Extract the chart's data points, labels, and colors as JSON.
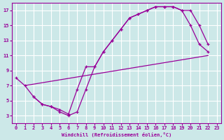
{
  "xlabel": "Windchill (Refroidissement éolien,°C)",
  "bg_color": "#cce8e8",
  "grid_color": "#ffffff",
  "line_color": "#990099",
  "xlim": [
    -0.5,
    23.5
  ],
  "ylim": [
    2,
    18
  ],
  "yticks": [
    3,
    5,
    7,
    9,
    11,
    13,
    15,
    17
  ],
  "xticks": [
    0,
    1,
    2,
    3,
    4,
    5,
    6,
    7,
    8,
    9,
    10,
    11,
    12,
    13,
    14,
    15,
    16,
    17,
    18,
    19,
    20,
    21,
    22,
    23
  ],
  "curve1_x": [
    0,
    1,
    2,
    3,
    4,
    5,
    6,
    7,
    8,
    9,
    10,
    11,
    12,
    13,
    14,
    15,
    16,
    17,
    18,
    19,
    20,
    21,
    22
  ],
  "curve1_y": [
    8.0,
    7.0,
    5.5,
    4.5,
    4.2,
    3.5,
    3.0,
    3.5,
    6.5,
    9.5,
    11.5,
    13.0,
    14.5,
    16.0,
    16.5,
    17.0,
    17.5,
    17.5,
    17.5,
    17.0,
    15.0,
    12.5,
    11.5
  ],
  "curve2_x": [
    1,
    22
  ],
  "curve2_y": [
    7.0,
    11.0
  ],
  "curve3_x": [
    2,
    3,
    4,
    5,
    6,
    7,
    8,
    9,
    10,
    11,
    12,
    13,
    14,
    15,
    16,
    17,
    18,
    19,
    20,
    21,
    22
  ],
  "curve3_y": [
    5.5,
    4.5,
    4.2,
    3.8,
    3.2,
    6.5,
    9.5,
    9.5,
    11.5,
    13.0,
    14.5,
    16.0,
    16.5,
    17.0,
    17.5,
    17.5,
    17.5,
    17.0,
    17.0,
    15.0,
    12.5
  ]
}
